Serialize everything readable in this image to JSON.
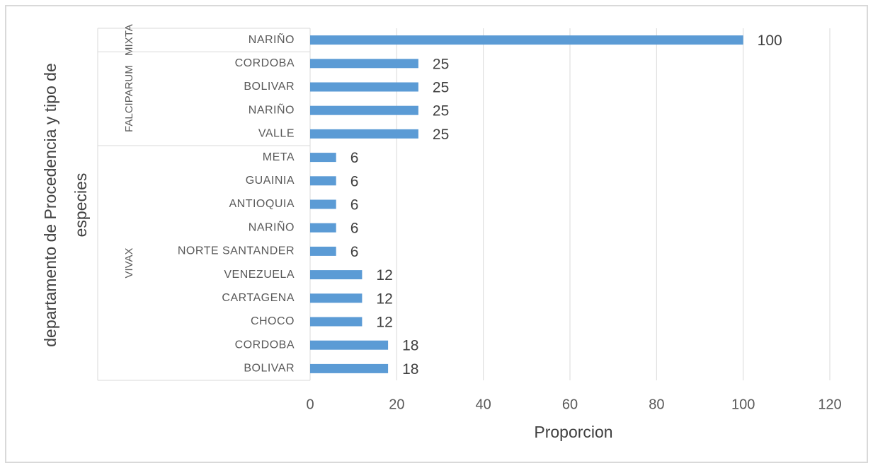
{
  "chart_data": {
    "type": "bar",
    "orientation": "horizontal",
    "x_label": "Proporcion",
    "y_label": "departamento de Procedencia y tipo de especies",
    "color": "#5b9bd5",
    "xlim": [
      0,
      120
    ],
    "xticks": [
      0,
      20,
      40,
      60,
      80,
      100,
      120
    ],
    "grid": true,
    "groups": [
      {
        "name": "MIXTA",
        "categories": [
          "NARIÑO"
        ],
        "values": [
          100
        ]
      },
      {
        "name": "FALCIPARUM",
        "categories": [
          "CORDOBA",
          "BOLIVAR",
          "NARIÑO",
          "VALLE"
        ],
        "values": [
          25,
          25,
          25,
          25
        ]
      },
      {
        "name": "VIVAX",
        "categories": [
          "META",
          "GUAINIA",
          "ANTIOQUIA",
          "NARIÑO",
          "NORTE SANTANDER",
          "VENEZUELA",
          "CARTAGENA",
          "CHOCO",
          "CORDOBA",
          "BOLIVAR"
        ],
        "values": [
          6,
          6,
          6,
          6,
          6,
          12,
          12,
          12,
          18,
          18
        ]
      }
    ]
  }
}
